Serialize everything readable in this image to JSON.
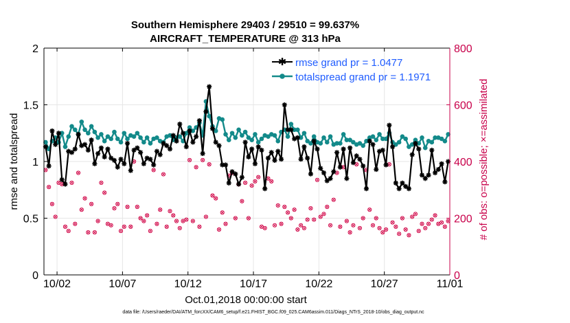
{
  "colors": {
    "rmse": "#000000",
    "spread": "#138a8a",
    "obs": "#d3104f",
    "legend_text": "#1f5cff",
    "grid": "#e6e6e6"
  },
  "footer": "data file: /Users/raeder/DAI/ATM_forcXX/CAM6_setup/f.e21.FHIST_BGC.f09_025.CAM6assim.011/Diags_NTrS_2018-10/obs_diag_output.nc",
  "chart_data": {
    "type": "line",
    "title": "Southern Hemisphere 29403 / 29510 = 99.637%",
    "subtitle": "AIRCRAFT_TEMPERATURE @ 313 hPa",
    "xlabel": "Oct.01,2018 00:00:00 start",
    "ylabel": "rmse and totalspread",
    "y2label": "# of obs: o=possible; ×=assimilated",
    "xlim": [
      0,
      31
    ],
    "ylim": [
      0,
      2
    ],
    "y2lim": [
      0,
      800
    ],
    "xticks": [
      1,
      6,
      11,
      16,
      21,
      26,
      31
    ],
    "xtick_labels": [
      "10/02",
      "10/07",
      "10/12",
      "10/17",
      "10/22",
      "10/27",
      "11/01"
    ],
    "yticks": [
      0,
      0.5,
      1,
      1.5,
      2
    ],
    "ytick_labels": [
      "0",
      "0.5",
      "1",
      "1.5",
      "2"
    ],
    "y2ticks": [
      0,
      200,
      400,
      600,
      800
    ],
    "y2tick_labels": [
      "0",
      "200",
      "400",
      "600",
      "800"
    ],
    "legend": {
      "position": "top-right",
      "entries": [
        "rmse grand pr = 1.0477",
        "totalspread grand pr = 1.1971"
      ]
    },
    "series": [
      {
        "name": "rmse",
        "axis": "left",
        "x": [
          0.125,
          0.375,
          0.625,
          0.875,
          1.125,
          1.375,
          1.625,
          1.875,
          2.125,
          2.375,
          2.625,
          2.875,
          3.125,
          3.375,
          3.625,
          3.875,
          4.125,
          4.375,
          4.625,
          4.875,
          5.125,
          5.375,
          5.625,
          5.875,
          6.125,
          6.375,
          6.625,
          6.875,
          7.125,
          7.375,
          7.625,
          7.875,
          8.125,
          8.375,
          8.625,
          8.875,
          9.125,
          9.375,
          9.625,
          9.875,
          10.125,
          10.375,
          10.625,
          10.875,
          11.125,
          11.375,
          11.625,
          11.875,
          12.125,
          12.375,
          12.625,
          12.875,
          13.125,
          13.375,
          13.625,
          13.875,
          14.125,
          14.375,
          14.625,
          14.875,
          15.125,
          15.375,
          15.625,
          15.875,
          16.125,
          16.375,
          16.625,
          16.875,
          17.125,
          17.375,
          17.625,
          17.875,
          18.125,
          18.375,
          18.625,
          18.875,
          19.125,
          19.375,
          19.625,
          19.875,
          20.125,
          20.375,
          20.625,
          20.875,
          21.125,
          21.375,
          21.625,
          21.875,
          22.125,
          22.375,
          22.625,
          22.875,
          23.125,
          23.375,
          23.625,
          23.875,
          24.125,
          24.375,
          24.625,
          24.875,
          25.125,
          25.375,
          25.625,
          25.875,
          26.125,
          26.375,
          26.625,
          26.875,
          27.125,
          27.375,
          27.625,
          27.875,
          28.125,
          28.375,
          28.625,
          28.875,
          29.125,
          29.375,
          29.625,
          29.875,
          30.125,
          30.375,
          30.625,
          30.875
        ],
        "values": [
          1.13,
          0.96,
          1.27,
          1.15,
          1.25,
          0.84,
          0.8,
          1.09,
          1.08,
          1.11,
          1.24,
          1.14,
          1.15,
          1.1,
          1.19,
          0.98,
          1.07,
          1.12,
          1.04,
          1.11,
          1.03,
          1.01,
          0.95,
          1.02,
          0.98,
          1.16,
          0.92,
          1.1,
          1.12,
          1.08,
          0.98,
          1.03,
          1.02,
          0.97,
          1.09,
          1.06,
          1.16,
          1.14,
          1.11,
          1.23,
          1.18,
          1.33,
          1.25,
          1.13,
          1.27,
          1.17,
          1.22,
          1.36,
          1.07,
          1.44,
          1.66,
          1.29,
          1.17,
          1.14,
          0.97,
          0.97,
          0.81,
          0.91,
          0.89,
          0.8,
          0.86,
          1.17,
          1.04,
          1.11,
          0.98,
          1.13,
          1.1,
          0.76,
          1.03,
          1.08,
          1.01,
          1.09,
          1.02,
          1.5,
          1.28,
          1.28,
          1.2,
          1.21,
          1.02,
          1.13,
          1.03,
          0.89,
          1.18,
          1.11,
          0.94,
          0.9,
          0.83,
          0.85,
          0.91,
          1.08,
          0.95,
          1.11,
          0.85,
          1.12,
          0.99,
          1.05,
          1.02,
          0.96,
          0.76,
          1.18,
          1.15,
          0.93,
          1.09,
          1.1,
          0.97,
          1.32,
          1.13,
          0.81,
          0.76,
          0.81,
          0.78,
          0.76,
          1.06,
          1.16,
          1.11,
          0.88,
          0.85,
          0.88,
          1.1,
          0.9,
          0.93,
          0.98,
          0.82,
          1.0
        ]
      },
      {
        "name": "totalspread",
        "axis": "left",
        "x": [
          0.125,
          0.375,
          0.625,
          0.875,
          1.125,
          1.375,
          1.625,
          1.875,
          2.125,
          2.375,
          2.625,
          2.875,
          3.125,
          3.375,
          3.625,
          3.875,
          4.125,
          4.375,
          4.625,
          4.875,
          5.125,
          5.375,
          5.625,
          5.875,
          6.125,
          6.375,
          6.625,
          6.875,
          7.125,
          7.375,
          7.625,
          7.875,
          8.125,
          8.375,
          8.625,
          8.875,
          9.125,
          9.375,
          9.625,
          9.875,
          10.125,
          10.375,
          10.625,
          10.875,
          11.125,
          11.375,
          11.625,
          11.875,
          12.125,
          12.375,
          12.625,
          12.875,
          13.125,
          13.375,
          13.625,
          13.875,
          14.125,
          14.375,
          14.625,
          14.875,
          15.125,
          15.375,
          15.625,
          15.875,
          16.125,
          16.375,
          16.625,
          16.875,
          17.125,
          17.375,
          17.625,
          17.875,
          18.125,
          18.375,
          18.625,
          18.875,
          19.125,
          19.375,
          19.625,
          19.875,
          20.125,
          20.375,
          20.625,
          20.875,
          21.125,
          21.375,
          21.625,
          21.875,
          22.125,
          22.375,
          22.625,
          22.875,
          23.125,
          23.375,
          23.625,
          23.875,
          24.125,
          24.375,
          24.625,
          24.875,
          25.125,
          25.375,
          25.625,
          25.875,
          26.125,
          26.375,
          26.625,
          26.875,
          27.125,
          27.375,
          27.625,
          27.875,
          28.125,
          28.375,
          28.625,
          28.875,
          29.125,
          29.375,
          29.625,
          29.875,
          30.125,
          30.375,
          30.625,
          30.875
        ],
        "values": [
          1.17,
          1.11,
          1.18,
          1.21,
          1.17,
          1.25,
          1.13,
          1.22,
          1.31,
          1.28,
          1.24,
          1.35,
          1.28,
          1.25,
          1.31,
          1.26,
          1.21,
          1.24,
          1.18,
          1.22,
          1.2,
          1.26,
          1.2,
          1.17,
          1.25,
          1.2,
          1.23,
          1.22,
          1.25,
          1.21,
          1.17,
          1.21,
          1.16,
          1.2,
          1.21,
          1.18,
          1.17,
          1.22,
          1.23,
          1.19,
          1.21,
          1.22,
          1.18,
          1.25,
          1.3,
          1.27,
          1.3,
          1.34,
          1.23,
          1.53,
          1.4,
          1.31,
          1.27,
          1.38,
          1.37,
          1.24,
          1.19,
          1.25,
          1.21,
          1.28,
          1.23,
          1.26,
          1.21,
          1.19,
          1.24,
          1.17,
          1.2,
          1.23,
          1.22,
          1.24,
          1.23,
          1.18,
          1.26,
          1.28,
          1.22,
          1.33,
          1.28,
          1.28,
          1.21,
          1.25,
          1.18,
          1.16,
          1.22,
          1.17,
          1.16,
          1.21,
          1.17,
          1.22,
          1.15,
          1.16,
          1.16,
          1.24,
          1.19,
          1.19,
          1.17,
          1.15,
          1.16,
          1.14,
          1.18,
          1.21,
          1.22,
          1.19,
          1.24,
          1.2,
          1.2,
          1.25,
          1.17,
          1.15,
          1.17,
          1.22,
          1.2,
          1.13,
          1.15,
          1.19,
          1.16,
          1.21,
          1.12,
          1.18,
          1.17,
          1.21,
          1.21,
          1.2,
          1.18,
          1.24
        ]
      },
      {
        "name": "# of obs possible",
        "axis": "right",
        "marker": "o",
        "x": [
          0.125,
          0.375,
          0.625,
          0.875,
          1.125,
          1.375,
          1.625,
          1.875,
          2.125,
          2.375,
          2.625,
          2.875,
          3.125,
          3.375,
          3.625,
          3.875,
          4.125,
          4.375,
          4.625,
          4.875,
          5.125,
          5.375,
          5.625,
          5.875,
          6.125,
          6.375,
          6.625,
          6.875,
          7.125,
          7.375,
          7.625,
          7.875,
          8.125,
          8.375,
          8.625,
          8.875,
          9.125,
          9.375,
          9.625,
          9.875,
          10.125,
          10.375,
          10.625,
          10.875,
          11.125,
          11.375,
          11.625,
          11.875,
          12.125,
          12.375,
          12.625,
          12.875,
          13.125,
          13.375,
          13.625,
          13.875,
          14.125,
          14.375,
          14.625,
          14.875,
          15.125,
          15.375,
          15.625,
          15.875,
          16.125,
          16.375,
          16.625,
          16.875,
          17.125,
          17.375,
          17.625,
          17.875,
          18.125,
          18.375,
          18.625,
          18.875,
          19.125,
          19.375,
          19.625,
          19.875,
          20.125,
          20.375,
          20.625,
          20.875,
          21.125,
          21.375,
          21.625,
          21.875,
          22.125,
          22.375,
          22.625,
          22.875,
          23.125,
          23.375,
          23.625,
          23.875,
          24.125,
          24.375,
          24.625,
          24.875,
          25.125,
          25.375,
          25.625,
          25.875,
          26.125,
          26.375,
          26.625,
          26.875,
          27.125,
          27.375,
          27.625,
          27.875,
          28.125,
          28.375,
          28.625,
          28.875,
          29.125,
          29.375,
          29.625,
          29.875,
          30.125,
          30.375,
          30.625,
          30.875
        ],
        "values": [
          370,
          310,
          250,
          205,
          325,
          320,
          170,
          155,
          325,
          180,
          360,
          230,
          270,
          150,
          250,
          150,
          190,
          325,
          290,
          180,
          175,
          235,
          250,
          155,
          170,
          240,
          170,
          400,
          240,
          200,
          190,
          210,
          155,
          370,
          180,
          230,
          355,
          170,
          225,
          210,
          190,
          165,
          190,
          195,
          405,
          190,
          380,
          170,
          405,
          205,
          390,
          280,
          270,
          160,
          220,
          180,
          350,
          360,
          200,
          320,
          260,
          325,
          200,
          315,
          330,
          345,
          170,
          165,
          340,
          330,
          175,
          245,
          180,
          240,
          220,
          200,
          230,
          160,
          175,
          165,
          195,
          235,
          195,
          335,
          205,
          215,
          240,
          175,
          265,
          360,
          170,
          380,
          190,
          150,
          175,
          390,
          165,
          200,
          370,
          230,
          175,
          200,
          165,
          150,
          160,
          390,
          185,
          170,
          145,
          200,
          160,
          140,
          205,
          215,
          155,
          180,
          165,
          180,
          195,
          210,
          180,
          185,
          170,
          190
        ]
      },
      {
        "name": "# of obs assimilated",
        "axis": "right",
        "marker": "x",
        "x": [
          0.125,
          0.375,
          0.625,
          0.875,
          1.125,
          1.375,
          1.625,
          1.875,
          2.125,
          2.375,
          2.625,
          2.875,
          3.125,
          3.375,
          3.625,
          3.875,
          4.125,
          4.375,
          4.625,
          4.875,
          5.125,
          5.375,
          5.625,
          5.875,
          6.125,
          6.375,
          6.625,
          6.875,
          7.125,
          7.375,
          7.625,
          7.875,
          8.125,
          8.375,
          8.625,
          8.875,
          9.125,
          9.375,
          9.625,
          9.875,
          10.125,
          10.375,
          10.625,
          10.875,
          11.125,
          11.375,
          11.625,
          11.875,
          12.125,
          12.375,
          12.625,
          12.875,
          13.125,
          13.375,
          13.625,
          13.875,
          14.125,
          14.375,
          14.625,
          14.875,
          15.125,
          15.375,
          15.625,
          15.875,
          16.125,
          16.375,
          16.625,
          16.875,
          17.125,
          17.375,
          17.625,
          17.875,
          18.125,
          18.375,
          18.625,
          18.875,
          19.125,
          19.375,
          19.625,
          19.875,
          20.125,
          20.375,
          20.625,
          20.875,
          21.125,
          21.375,
          21.625,
          21.875,
          22.125,
          22.375,
          22.625,
          22.875,
          23.125,
          23.375,
          23.625,
          23.875,
          24.125,
          24.375,
          24.625,
          24.875,
          25.125,
          25.375,
          25.625,
          25.875,
          26.125,
          26.375,
          26.625,
          26.875,
          27.125,
          27.375,
          27.625,
          27.875,
          28.125,
          28.375,
          28.625,
          28.875,
          29.125,
          29.375,
          29.625,
          29.875,
          30.125,
          30.375,
          30.625,
          30.875
        ],
        "values": [
          370,
          310,
          250,
          205,
          325,
          320,
          170,
          155,
          325,
          180,
          360,
          230,
          270,
          150,
          250,
          150,
          190,
          325,
          290,
          180,
          175,
          235,
          250,
          155,
          170,
          240,
          170,
          400,
          240,
          200,
          190,
          210,
          155,
          370,
          180,
          230,
          355,
          170,
          225,
          210,
          190,
          165,
          190,
          195,
          405,
          190,
          380,
          170,
          405,
          205,
          390,
          280,
          270,
          160,
          220,
          180,
          350,
          360,
          200,
          320,
          260,
          325,
          200,
          315,
          330,
          345,
          170,
          165,
          340,
          330,
          175,
          245,
          180,
          240,
          220,
          200,
          230,
          160,
          175,
          165,
          195,
          235,
          195,
          335,
          205,
          215,
          240,
          175,
          265,
          360,
          170,
          380,
          190,
          150,
          175,
          390,
          165,
          200,
          370,
          230,
          175,
          200,
          165,
          150,
          160,
          390,
          185,
          170,
          145,
          200,
          160,
          140,
          205,
          215,
          155,
          180,
          165,
          180,
          195,
          210,
          180,
          185,
          170,
          190
        ]
      }
    ]
  }
}
